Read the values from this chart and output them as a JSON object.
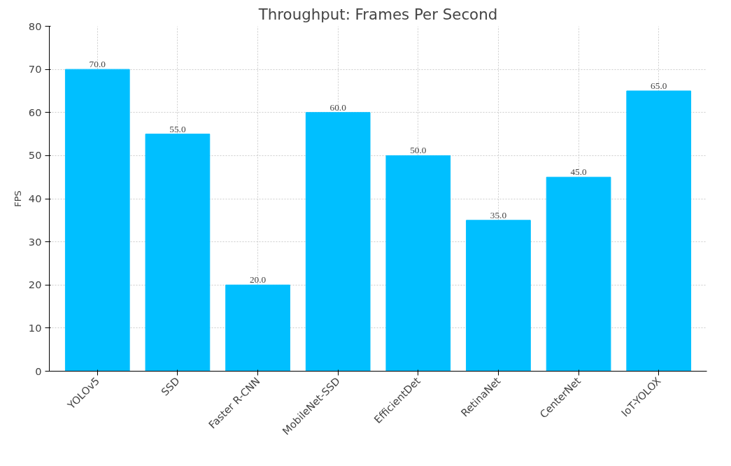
{
  "chart_data": {
    "type": "bar",
    "title": "Throughput: Frames Per Second",
    "ylabel": "FPS",
    "categories": [
      "YOLOv5",
      "SSD",
      "Faster R-CNN",
      "MobileNet-SSD",
      "EfficientDet",
      "RetinaNet",
      "CenterNet",
      "IoT-YOLOX"
    ],
    "values": [
      70.0,
      55.0,
      20.0,
      60.0,
      50.0,
      35.0,
      45.0,
      65.0
    ],
    "value_labels": [
      "70.0",
      "55.0",
      "20.0",
      "60.0",
      "50.0",
      "35.0",
      "45.0",
      "65.0"
    ],
    "color": "#00bfff",
    "ylim": [
      0,
      80
    ],
    "yticks": [
      0,
      10,
      20,
      30,
      40,
      50,
      60,
      70,
      80
    ],
    "grid": true
  }
}
